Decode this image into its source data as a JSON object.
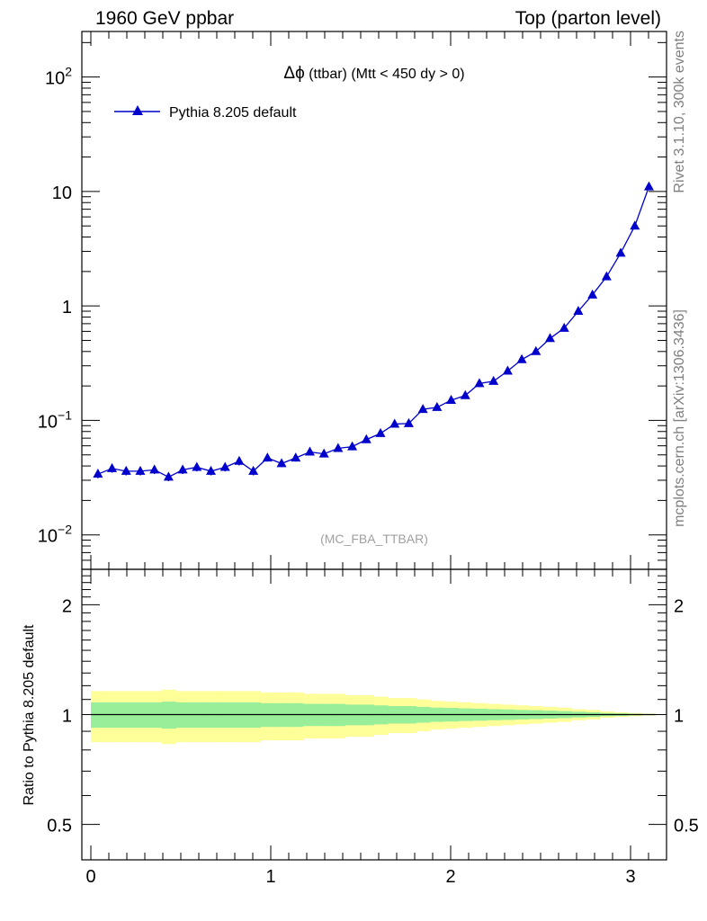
{
  "header": {
    "left": "1960 GeV ppbar",
    "right": "Top (parton level)"
  },
  "side_text": {
    "rivet": "Rivet 3.1.10,  300k events",
    "mcplots": "mcplots.cern.ch [arXiv:1306.3436]"
  },
  "plot_title_symbol": "Δϕ",
  "plot_title_rest": " (ttbar) (Mtt < 450 dy > 0)",
  "analysis_tag": "(MC_FBA_TTBAR)",
  "legend_label": "Pythia 8.205 default",
  "ratio_ylabel": "Ratio to Pythia 8.205 default",
  "colors": {
    "series": "#0000cc",
    "band_inner": "#99ee99",
    "band_outer": "#ffff99"
  },
  "chart_data": [
    {
      "type": "line",
      "panel": "main",
      "title": "Δϕ (ttbar) (Mtt < 450 dy > 0)",
      "yscale": "log",
      "xlim": [
        -0.05,
        3.2
      ],
      "ylim": [
        0.005,
        250
      ],
      "y_ticks": [
        0.01,
        0.1,
        1,
        10,
        100
      ],
      "y_tick_labels": [
        {
          "base": "10",
          "exp": "−2"
        },
        {
          "base": "10",
          "exp": "−1"
        },
        {
          "base": "1",
          "exp": ""
        },
        {
          "base": "10",
          "exp": ""
        },
        {
          "base": "10",
          "exp": "2"
        }
      ],
      "legend_position": "top-left",
      "series": [
        {
          "name": "Pythia 8.205 default",
          "marker": "triangle",
          "x": [
            0.0393,
            0.1178,
            0.1963,
            0.2749,
            0.3534,
            0.432,
            0.5105,
            0.589,
            0.6676,
            0.7461,
            0.8247,
            0.9032,
            0.9817,
            1.0603,
            1.1388,
            1.2174,
            1.2959,
            1.3744,
            1.453,
            1.5315,
            1.6101,
            1.6886,
            1.7671,
            1.8457,
            1.9242,
            2.0028,
            2.0813,
            2.1598,
            2.2384,
            2.3169,
            2.3955,
            2.474,
            2.5525,
            2.6311,
            2.7096,
            2.7882,
            2.8667,
            2.9452,
            3.0238,
            3.1023
          ],
          "y": [
            0.034,
            0.038,
            0.036,
            0.036,
            0.037,
            0.032,
            0.037,
            0.039,
            0.036,
            0.039,
            0.044,
            0.036,
            0.047,
            0.042,
            0.047,
            0.053,
            0.051,
            0.057,
            0.059,
            0.068,
            0.077,
            0.093,
            0.094,
            0.125,
            0.13,
            0.15,
            0.165,
            0.21,
            0.22,
            0.27,
            0.34,
            0.4,
            0.52,
            0.64,
            0.9,
            1.25,
            1.8,
            2.9,
            5.0,
            11.0
          ],
          "yerr_rel": [
            0.08,
            0.08,
            0.08,
            0.08,
            0.08,
            0.08,
            0.08,
            0.08,
            0.08,
            0.08,
            0.08,
            0.08,
            0.07,
            0.07,
            0.07,
            0.06,
            0.06,
            0.06,
            0.05,
            0.05,
            0.05,
            0.04,
            0.04,
            0.04,
            0.03,
            0.03,
            0.03,
            0.03,
            0.02,
            0.02,
            0.02,
            0.02,
            0.02,
            0.01,
            0.01,
            0.01,
            0.01,
            0.01,
            0.01,
            0.01
          ]
        }
      ]
    },
    {
      "type": "area",
      "panel": "ratio",
      "ylabel": "Ratio to Pythia 8.205 default",
      "yscale": "log",
      "xlim": [
        -0.05,
        3.2
      ],
      "ylim": [
        0.4,
        2.5
      ],
      "x_ticks": [
        0,
        1,
        2,
        3
      ],
      "x_tick_labels": [
        "0",
        "1",
        "2",
        "3"
      ],
      "y_ticks": [
        0.5,
        1,
        2
      ],
      "y_tick_labels": [
        "0.5",
        "1",
        "2"
      ],
      "reference_line": 1,
      "bands": [
        {
          "name": "outer",
          "half_width": [
            0.16,
            0.16,
            0.16,
            0.16,
            0.16,
            0.17,
            0.16,
            0.16,
            0.16,
            0.16,
            0.16,
            0.16,
            0.15,
            0.15,
            0.15,
            0.14,
            0.14,
            0.14,
            0.13,
            0.13,
            0.12,
            0.11,
            0.11,
            0.1,
            0.09,
            0.085,
            0.08,
            0.075,
            0.07,
            0.065,
            0.06,
            0.055,
            0.05,
            0.045,
            0.035,
            0.03,
            0.02,
            0.015,
            0.01,
            0.005
          ]
        },
        {
          "name": "inner",
          "half_width": [
            0.08,
            0.08,
            0.08,
            0.08,
            0.08,
            0.085,
            0.08,
            0.08,
            0.08,
            0.08,
            0.08,
            0.08,
            0.075,
            0.075,
            0.075,
            0.07,
            0.07,
            0.07,
            0.065,
            0.065,
            0.06,
            0.055,
            0.055,
            0.05,
            0.045,
            0.043,
            0.04,
            0.038,
            0.035,
            0.033,
            0.03,
            0.028,
            0.025,
            0.022,
            0.018,
            0.015,
            0.01,
            0.008,
            0.005,
            0.003
          ]
        }
      ]
    }
  ]
}
